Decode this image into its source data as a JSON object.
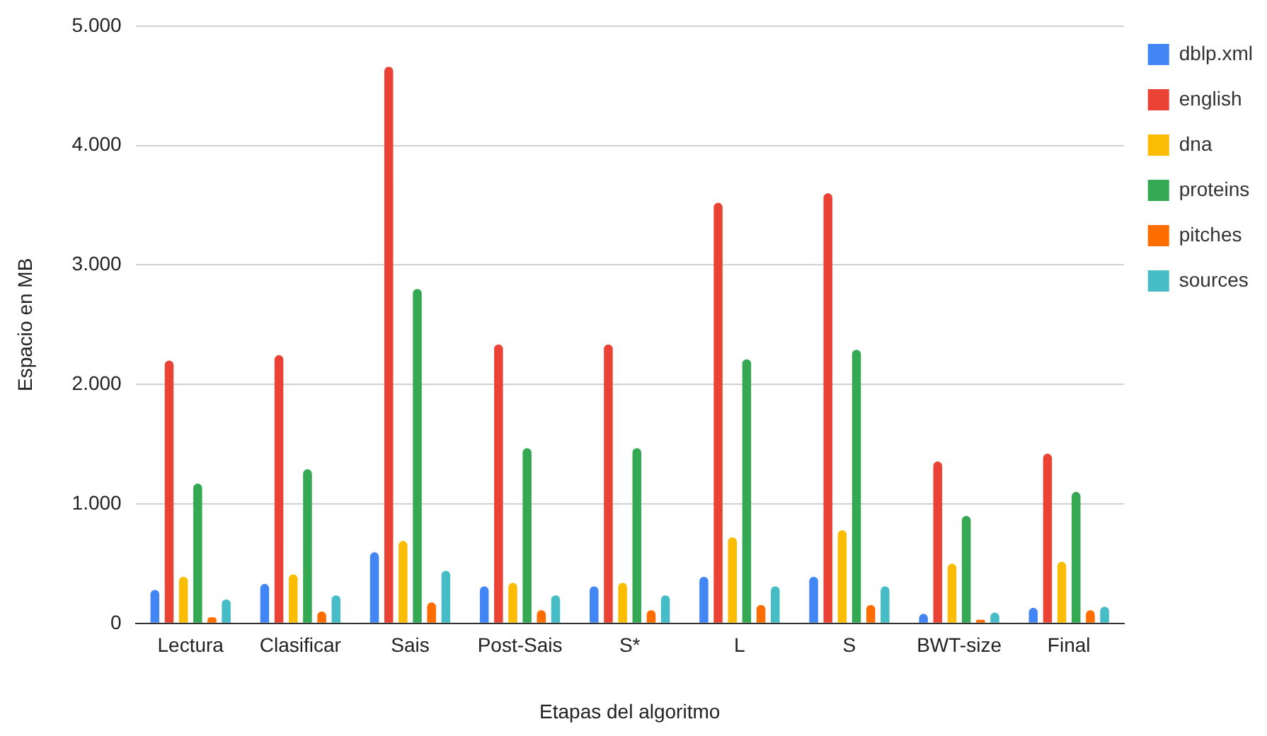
{
  "chart_data": {
    "type": "bar",
    "xlabel": "Etapas del algoritmo",
    "ylabel": "Espacio en MB",
    "categories": [
      "Lectura",
      "Clasificar",
      "Sais",
      "Post-Sais",
      "S*",
      "L",
      "S",
      "BWT-size",
      "Final"
    ],
    "series": [
      {
        "name": "dblp.xml",
        "color": "#4285f4",
        "values": [
          280,
          330,
          595,
          310,
          310,
          390,
          390,
          80,
          130
        ]
      },
      {
        "name": "english",
        "color": "#ea4335",
        "values": [
          2200,
          2245,
          4660,
          2335,
          2335,
          3520,
          3600,
          1355,
          1420
        ]
      },
      {
        "name": "dna",
        "color": "#fbbc04",
        "values": [
          390,
          410,
          690,
          340,
          340,
          720,
          780,
          500,
          515
        ]
      },
      {
        "name": "proteins",
        "color": "#34a853",
        "values": [
          1170,
          1290,
          2800,
          1467,
          1467,
          2210,
          2290,
          900,
          1100
        ]
      },
      {
        "name": "pitches",
        "color": "#ff6d01",
        "values": [
          50,
          100,
          175,
          110,
          110,
          155,
          155,
          30,
          110
        ]
      },
      {
        "name": "sources",
        "color": "#46bdc6",
        "values": [
          200,
          235,
          440,
          235,
          235,
          310,
          310,
          90,
          140
        ]
      }
    ],
    "ylim": [
      0,
      5000
    ],
    "yticks": [
      {
        "value": 0,
        "label": "0"
      },
      {
        "value": 1000,
        "label": "1.000"
      },
      {
        "value": 2000,
        "label": "2.000"
      },
      {
        "value": 3000,
        "label": "3.000"
      },
      {
        "value": 4000,
        "label": "4.000"
      },
      {
        "value": 5000,
        "label": "5.000"
      }
    ],
    "grid": "y",
    "legend": "top right"
  }
}
